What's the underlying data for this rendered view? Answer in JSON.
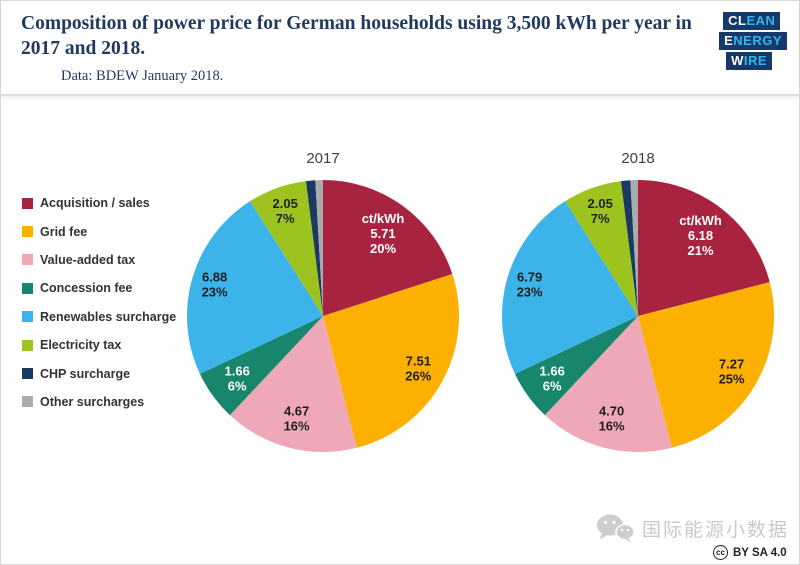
{
  "header": {
    "title": "Composition of power price for German households using 3,500 kWh per year in 2017 and 2018.",
    "subtitle": "Data: BDEW January 2018.",
    "title_color": "#1e3a5e"
  },
  "logo": {
    "name": "Clean Energy Wire",
    "bg_color": "#15396b",
    "accent_color": "#35b4e9",
    "lines": [
      {
        "white": "CL",
        "blue": "EAN"
      },
      {
        "white": "E",
        "blue": "NERGY"
      },
      {
        "white": "W",
        "blue": "IRE"
      }
    ]
  },
  "legend": {
    "items": [
      {
        "label": "Acquisition / sales",
        "color": "#a72340"
      },
      {
        "label": "Grid fee",
        "color": "#fcb002"
      },
      {
        "label": "Value-added tax",
        "color": "#efa8b8"
      },
      {
        "label": "Concession fee",
        "color": "#17866d"
      },
      {
        "label": "Renewables surcharge",
        "color": "#3cb4ea"
      },
      {
        "label": "Electricity tax",
        "color": "#9dc41e"
      },
      {
        "label": "CHP surcharge",
        "color": "#1a3a64"
      },
      {
        "label": "Other surcharges",
        "color": "#a9abad"
      }
    ]
  },
  "chart_data": [
    {
      "type": "pie",
      "title": "2017",
      "unit": "ct/kWh",
      "start_angle_deg": 0,
      "direction": "clockwise",
      "slices": [
        {
          "label": "Acquisition / sales",
          "value": 5.71,
          "pct": 20,
          "color": "#a72340",
          "text_color": "#ffffff",
          "unit_label": "ct/kWh",
          "value_label": "5.71",
          "pct_label": "20%",
          "lr": 0.75
        },
        {
          "label": "Grid fee",
          "value": 7.51,
          "pct": 26,
          "color": "#fcb002",
          "text_color": "#1f1f1f",
          "value_label": "7.51",
          "pct_label": "26%",
          "lr": 0.8
        },
        {
          "label": "Value-added tax",
          "value": 4.67,
          "pct": 16,
          "color": "#efa8b8",
          "text_color": "#1f1f1f",
          "value_label": "4.67",
          "pct_label": "16%",
          "lr": 0.78
        },
        {
          "label": "Concession fee",
          "value": 1.66,
          "pct": 6,
          "color": "#17866d",
          "text_color": "#ffffff",
          "value_label": "1.66",
          "pct_label": "6%",
          "lr": 0.78
        },
        {
          "label": "Renewables surcharge",
          "value": 6.88,
          "pct": 23,
          "color": "#3cb4ea",
          "text_color": "#1f1f1f",
          "value_label": "6.88",
          "pct_label": "23%",
          "lr": 0.83
        },
        {
          "label": "Electricity tax",
          "value": 2.05,
          "pct": 7,
          "color": "#9dc41e",
          "text_color": "#1f1f1f",
          "value_label": "2.05",
          "pct_label": "7%",
          "lr": 0.82
        },
        {
          "label": "CHP surcharge",
          "value": null,
          "pct": 1.1,
          "color": "#1a3a64",
          "labeled": false
        },
        {
          "label": "Other surcharges",
          "value": null,
          "pct": 0.9,
          "color": "#a9abad",
          "labeled": false
        }
      ]
    },
    {
      "type": "pie",
      "title": "2018",
      "unit": "ct/kWh",
      "start_angle_deg": 0,
      "direction": "clockwise",
      "slices": [
        {
          "label": "Acquisition / sales",
          "value": 6.18,
          "pct": 21,
          "color": "#a72340",
          "text_color": "#ffffff",
          "unit_label": "ct/kWh",
          "value_label": "6.18",
          "pct_label": "21%",
          "lr": 0.75
        },
        {
          "label": "Grid fee",
          "value": 7.27,
          "pct": 25,
          "color": "#fcb002",
          "text_color": "#1f1f1f",
          "value_label": "7.27",
          "pct_label": "25%",
          "lr": 0.8
        },
        {
          "label": "Value-added tax",
          "value": 4.7,
          "pct": 16,
          "color": "#efa8b8",
          "text_color": "#1f1f1f",
          "value_label": "4.70",
          "pct_label": "16%",
          "lr": 0.78
        },
        {
          "label": "Concession fee",
          "value": 1.66,
          "pct": 6,
          "color": "#17866d",
          "text_color": "#ffffff",
          "value_label": "1.66",
          "pct_label": "6%",
          "lr": 0.78
        },
        {
          "label": "Renewables surcharge",
          "value": 6.79,
          "pct": 23,
          "color": "#3cb4ea",
          "text_color": "#1f1f1f",
          "value_label": "6.79",
          "pct_label": "23%",
          "lr": 0.83
        },
        {
          "label": "Electricity tax",
          "value": 2.05,
          "pct": 7,
          "color": "#9dc41e",
          "text_color": "#1f1f1f",
          "value_label": "2.05",
          "pct_label": "7%",
          "lr": 0.82
        },
        {
          "label": "CHP surcharge",
          "value": null,
          "pct": 1.1,
          "color": "#1a3a64",
          "labeled": false
        },
        {
          "label": "Other surcharges",
          "value": null,
          "pct": 0.9,
          "color": "#a9abad",
          "labeled": false
        }
      ]
    }
  ],
  "footer": {
    "watermark_text": "国际能源小数据",
    "license_text": "BY SA 4.0",
    "cc_text": "cc"
  }
}
